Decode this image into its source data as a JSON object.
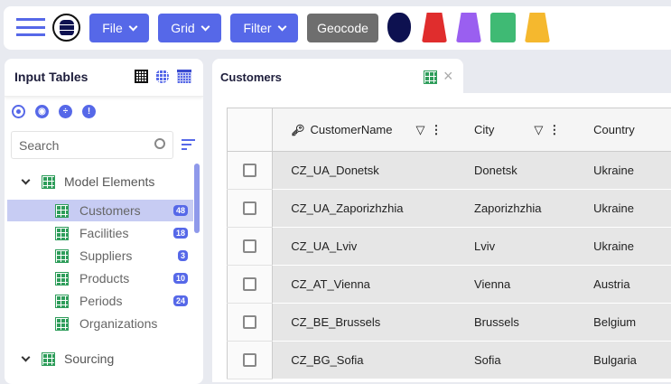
{
  "toolbar": {
    "file": "File",
    "grid": "Grid",
    "filter": "Filter",
    "geocode": "Geocode",
    "mascot_colors": [
      "#0d1150",
      "#e02d2d",
      "#9a5ff0",
      "#3fba74",
      "#f5b82e"
    ]
  },
  "left_panel": {
    "title": "Input Tables",
    "search_placeholder": "Search",
    "groups": [
      {
        "label": "Model Elements",
        "items": [
          {
            "label": "Customers",
            "count": "48",
            "selected": true
          },
          {
            "label": "Facilities",
            "count": "18"
          },
          {
            "label": "Suppliers",
            "count": "3"
          },
          {
            "label": "Products",
            "count": "10"
          },
          {
            "label": "Periods",
            "count": "24"
          },
          {
            "label": "Organizations",
            "count": null
          }
        ]
      },
      {
        "label": "Sourcing"
      }
    ]
  },
  "tab": {
    "label": "Customers"
  },
  "table": {
    "columns": [
      "CustomerName",
      "City",
      "Country"
    ],
    "rows": [
      [
        "CZ_UA_Donetsk",
        "Donetsk",
        "Ukraine"
      ],
      [
        "CZ_UA_Zaporizhzhia",
        "Zaporizhzhia",
        "Ukraine"
      ],
      [
        "CZ_UA_Lviv",
        "Lviv",
        "Ukraine"
      ],
      [
        "CZ_AT_Vienna",
        "Vienna",
        "Austria"
      ],
      [
        "CZ_BE_Brussels",
        "Brussels",
        "Belgium"
      ],
      [
        "CZ_BG_Sofia",
        "Sofia",
        "Bulgaria"
      ]
    ]
  }
}
